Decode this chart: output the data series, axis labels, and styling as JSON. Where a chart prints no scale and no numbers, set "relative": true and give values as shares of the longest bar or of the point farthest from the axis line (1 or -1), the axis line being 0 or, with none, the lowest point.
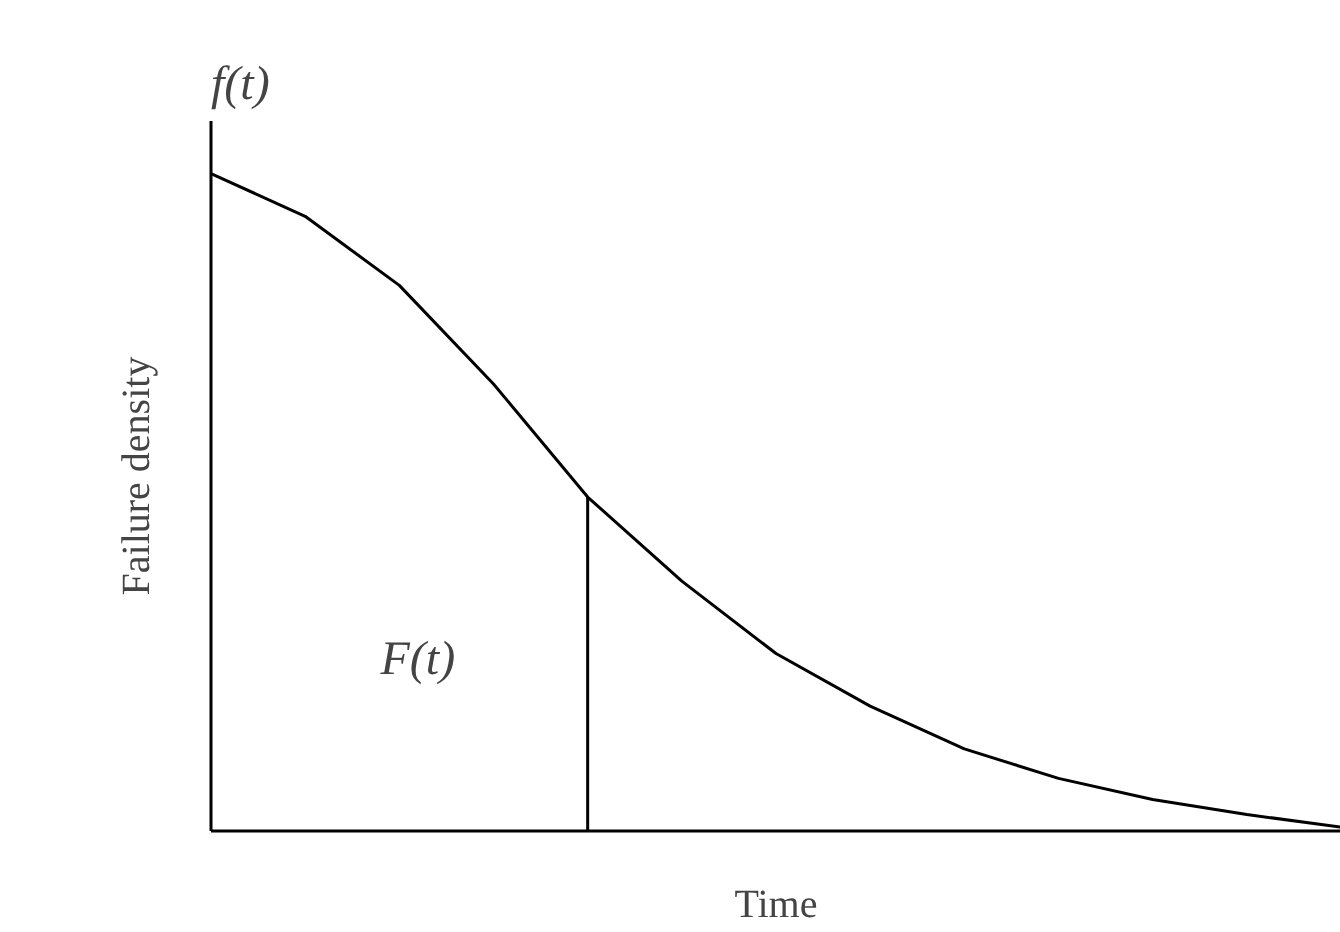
{
  "chart_data": {
    "type": "line",
    "title": "f(t)",
    "xlabel": "Time",
    "ylabel": "Failure density",
    "relative": true,
    "categories": [
      null,
      null,
      null,
      null,
      null,
      null,
      null,
      null,
      null,
      null,
      null,
      null,
      null
    ],
    "series": [
      {
        "color": "#000000",
        "values": [
          1.0,
          0.935,
          0.83,
          0.68,
          0.508,
          0.38,
          0.27,
          0.19,
          0.125,
          0.08,
          0.048,
          0.025,
          0.006
        ]
      }
    ],
    "annotations": [
      "F(t)"
    ],
    "grid": false,
    "marker": "none",
    "line_style": "solid"
  }
}
